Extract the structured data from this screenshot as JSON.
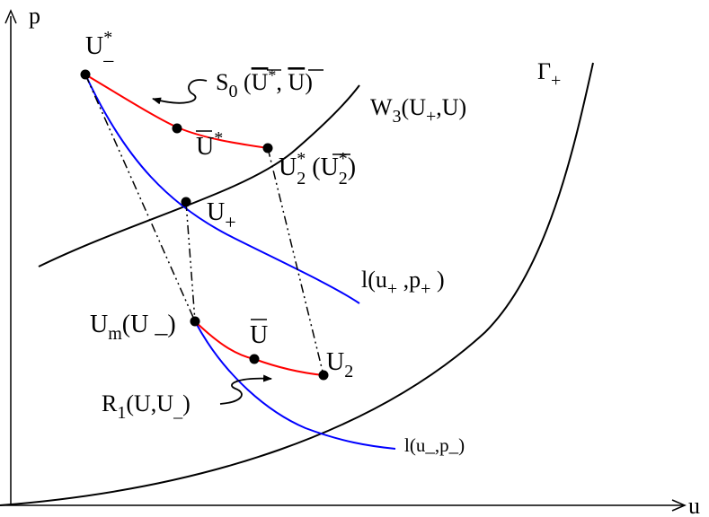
{
  "axes": {
    "x_label": "u",
    "y_label": "p"
  },
  "curves": {
    "gamma_plus": {
      "label": "Γ",
      "label_sub": "+",
      "color": "#000000"
    },
    "w3": {
      "label": "W",
      "label_sub": "3",
      "label_args": "(U",
      "label_args_sub": "+",
      "label_args_end": ",U)",
      "color": "#000000"
    },
    "l_plus": {
      "label": "l(u",
      "label_sub1": "+",
      "label_mid": " ,p",
      "label_sub2": "+",
      "label_end": " )",
      "color": "#0000ff"
    },
    "l_minus": {
      "label": "l(u_,p_)",
      "color": "#0000ff"
    },
    "s0": {
      "label_S": "S",
      "label_sub": "0",
      "label_args_open": " (",
      "label_U": "U",
      "label_sup": "*",
      "label_sep": ", ",
      "label_U2": "U",
      "label_close": ")",
      "color": "#ff0000"
    },
    "r1": {
      "label_R": "R",
      "label_sub": "1",
      "label_args": "(U,U",
      "label_args_sub": "_",
      "label_close": ")",
      "color": "#ff0000"
    }
  },
  "points": {
    "u_minus_star": {
      "label": "U",
      "sup": "*",
      "sub": "_"
    },
    "u_bar_star": {
      "label": "U",
      "sup": "*"
    },
    "u2_star": {
      "label": "U",
      "sup": "*",
      "sub": "2",
      "paren_open": " (",
      "paren_label": "U",
      "paren_sup": "*",
      "paren_sub": "2",
      "paren_close": ")"
    },
    "u_plus": {
      "label": "U",
      "sub": "+"
    },
    "u_m": {
      "label": "U",
      "sub": "m",
      "paren": "(U _)"
    },
    "u_bar": {
      "label": "U"
    },
    "u2": {
      "label": "U",
      "sub": "2"
    }
  }
}
